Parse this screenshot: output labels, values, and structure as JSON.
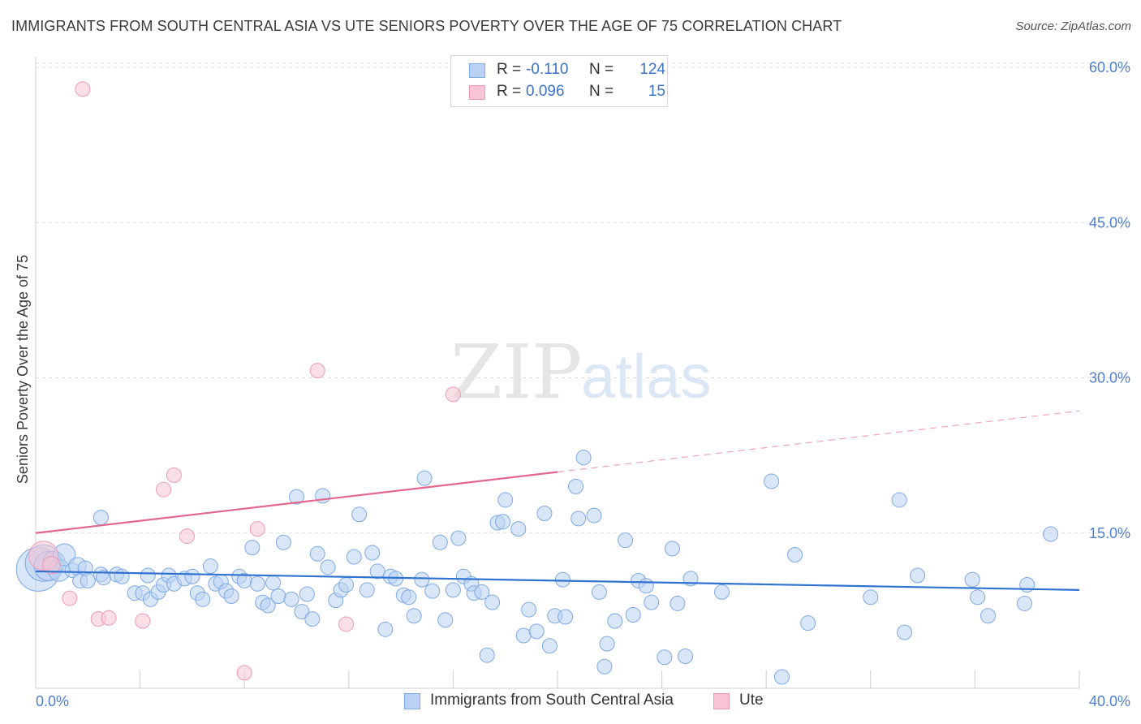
{
  "header": {
    "title": "IMMIGRANTS FROM SOUTH CENTRAL ASIA VS UTE SENIORS POVERTY OVER THE AGE OF 75 CORRELATION CHART",
    "source": "Source: ZipAtlas.com"
  },
  "watermark": {
    "zip": "ZIP",
    "atlas": "atlas"
  },
  "legend": {
    "rows": [
      {
        "r_label": "R =",
        "r_value": "-0.110",
        "n_label": "N =",
        "n_value": "124",
        "color": "#7fa9e6",
        "fill": "#b9d2f3"
      },
      {
        "r_label": "R =",
        "r_value": "0.096",
        "n_label": "N =",
        "n_value": "15",
        "color": "#ee9ab4",
        "fill": "#f7c5d4"
      }
    ]
  },
  "bottom_legend": [
    {
      "label": "Immigrants from South Central Asia",
      "color": "#7fa9e6",
      "fill": "#b9d2f3"
    },
    {
      "label": "Ute",
      "color": "#ee9ab4",
      "fill": "#f7c5d4"
    }
  ],
  "chart_data": {
    "type": "scatter",
    "title": "IMMIGRANTS FROM SOUTH CENTRAL ASIA VS UTE SENIORS POVERTY OVER THE AGE OF 75 CORRELATION CHART",
    "xlabel": "",
    "ylabel": "Seniors Poverty Over the Age of 75",
    "xlim": [
      0,
      40
    ],
    "ylim": [
      0,
      62
    ],
    "x_tick_labels": {
      "min": "0.0%",
      "max": "40.0%"
    },
    "y_ticks": [
      15,
      30,
      45,
      60
    ],
    "y_tick_labels": [
      "15.0%",
      "30.0%",
      "45.0%",
      "60.0%"
    ],
    "grid": "horizontal dashed",
    "legend_position": "top-center",
    "series": [
      {
        "name": "Immigrants from South Central Asia",
        "color": "#7fa9e6",
        "fill": "#b9d2f3",
        "trend": {
          "x0": 0,
          "y0": 11.3,
          "x1": 40,
          "y1": 9.5,
          "color": "#2f72d0"
        },
        "points": [
          [
            0.1,
            11.5,
            3
          ],
          [
            0.3,
            12.1,
            2.5
          ],
          [
            0.5,
            11.8,
            2
          ],
          [
            0.7,
            12.2,
            1.5
          ],
          [
            0.9,
            11.4,
            1.5
          ],
          [
            1.1,
            12.9,
            1.5
          ],
          [
            1.4,
            11.4,
            1
          ],
          [
            1.6,
            11.8,
            1.2
          ],
          [
            1.7,
            10.4,
            1
          ],
          [
            2.5,
            16.5,
            1
          ],
          [
            1.9,
            11.6,
            1
          ],
          [
            2.0,
            10.4,
            1
          ],
          [
            2.5,
            11.0,
            1
          ],
          [
            2.6,
            10.7,
            1
          ],
          [
            3.1,
            11.0,
            1
          ],
          [
            3.3,
            10.8,
            1
          ],
          [
            3.8,
            9.2,
            1
          ],
          [
            4.1,
            9.2,
            1
          ],
          [
            4.3,
            10.9,
            1
          ],
          [
            4.4,
            8.6,
            1
          ],
          [
            4.7,
            9.3,
            1
          ],
          [
            4.9,
            10.0,
            1
          ],
          [
            5.1,
            10.9,
            1
          ],
          [
            5.3,
            10.1,
            1
          ],
          [
            5.7,
            10.6,
            1
          ],
          [
            6.0,
            10.8,
            1
          ],
          [
            6.2,
            9.2,
            1
          ],
          [
            6.4,
            8.6,
            1
          ],
          [
            6.7,
            11.8,
            1
          ],
          [
            6.9,
            10.1,
            1
          ],
          [
            7.1,
            10.3,
            1
          ],
          [
            7.3,
            9.4,
            1
          ],
          [
            7.5,
            8.9,
            1
          ],
          [
            7.8,
            10.8,
            1
          ],
          [
            8.0,
            10.4,
            1
          ],
          [
            8.3,
            13.6,
            1
          ],
          [
            8.5,
            10.1,
            1
          ],
          [
            8.7,
            8.3,
            1
          ],
          [
            8.9,
            8.0,
            1
          ],
          [
            9.1,
            10.2,
            1
          ],
          [
            9.3,
            8.9,
            1
          ],
          [
            9.5,
            14.1,
            1
          ],
          [
            9.8,
            8.6,
            1
          ],
          [
            10.0,
            18.5,
            1
          ],
          [
            10.2,
            7.4,
            1
          ],
          [
            10.4,
            9.1,
            1
          ],
          [
            10.6,
            6.7,
            1
          ],
          [
            10.8,
            13.0,
            1
          ],
          [
            11.0,
            18.6,
            1
          ],
          [
            11.2,
            11.7,
            1
          ],
          [
            11.5,
            8.5,
            1
          ],
          [
            11.7,
            9.5,
            1
          ],
          [
            11.9,
            10.0,
            1
          ],
          [
            12.2,
            12.7,
            1
          ],
          [
            12.4,
            16.8,
            1
          ],
          [
            12.7,
            9.5,
            1
          ],
          [
            12.9,
            13.1,
            1
          ],
          [
            13.1,
            11.3,
            1
          ],
          [
            13.4,
            5.7,
            1
          ],
          [
            13.6,
            10.8,
            1
          ],
          [
            13.8,
            10.6,
            1
          ],
          [
            14.1,
            9.0,
            1
          ],
          [
            14.3,
            8.8,
            1
          ],
          [
            14.5,
            7.0,
            1
          ],
          [
            14.8,
            10.5,
            1
          ],
          [
            14.9,
            20.3,
            1
          ],
          [
            15.2,
            9.4,
            1
          ],
          [
            15.5,
            14.1,
            1
          ],
          [
            15.7,
            6.6,
            1
          ],
          [
            16.0,
            9.5,
            1
          ],
          [
            16.2,
            14.5,
            1
          ],
          [
            16.4,
            10.8,
            1
          ],
          [
            16.7,
            10.1,
            1
          ],
          [
            16.8,
            9.2,
            1
          ],
          [
            17.1,
            9.3,
            1
          ],
          [
            17.3,
            3.2,
            1
          ],
          [
            17.5,
            8.3,
            1
          ],
          [
            17.7,
            16.0,
            1
          ],
          [
            17.9,
            16.1,
            1
          ],
          [
            18.0,
            18.2,
            1
          ],
          [
            18.5,
            15.4,
            1
          ],
          [
            18.7,
            5.1,
            1
          ],
          [
            18.9,
            7.6,
            1
          ],
          [
            19.2,
            5.5,
            1
          ],
          [
            19.5,
            16.9,
            1
          ],
          [
            19.7,
            4.1,
            1
          ],
          [
            19.9,
            7.0,
            1
          ],
          [
            20.2,
            10.5,
            1
          ],
          [
            20.3,
            6.9,
            1
          ],
          [
            20.7,
            19.5,
            1
          ],
          [
            20.8,
            16.4,
            1
          ],
          [
            21.0,
            22.3,
            1
          ],
          [
            21.4,
            16.7,
            1
          ],
          [
            21.6,
            9.3,
            1
          ],
          [
            21.8,
            2.1,
            1
          ],
          [
            21.9,
            4.3,
            1
          ],
          [
            22.2,
            6.5,
            1
          ],
          [
            22.6,
            14.3,
            1
          ],
          [
            22.9,
            7.1,
            1
          ],
          [
            23.1,
            10.4,
            1
          ],
          [
            23.4,
            9.9,
            1
          ],
          [
            23.6,
            8.3,
            1
          ],
          [
            24.1,
            3.0,
            1
          ],
          [
            24.4,
            13.5,
            1
          ],
          [
            24.6,
            8.2,
            1
          ],
          [
            24.9,
            3.1,
            1
          ],
          [
            25.1,
            10.6,
            1
          ],
          [
            26.3,
            9.3,
            1
          ],
          [
            28.2,
            20.0,
            1
          ],
          [
            28.6,
            1.1,
            1
          ],
          [
            29.1,
            12.9,
            1
          ],
          [
            29.6,
            6.3,
            1
          ],
          [
            32.0,
            8.8,
            1
          ],
          [
            33.1,
            18.2,
            1
          ],
          [
            33.3,
            5.4,
            1
          ],
          [
            33.8,
            10.9,
            1
          ],
          [
            35.9,
            10.5,
            1
          ],
          [
            36.1,
            8.8,
            1
          ],
          [
            36.5,
            7.0,
            1
          ],
          [
            37.9,
            8.2,
            1
          ],
          [
            38.0,
            10.0,
            1
          ],
          [
            38.9,
            14.9,
            1
          ]
        ]
      },
      {
        "name": "Ute",
        "color": "#ee9ab4",
        "fill": "#f7c5d4",
        "trend": {
          "x0": 0,
          "y0": 15.0,
          "x1": 20,
          "y1": 20.9,
          "dash_to_x": 40,
          "dash_to_y": 26.8,
          "color": "#e3668f"
        },
        "points": [
          [
            0.3,
            12.8,
            2
          ],
          [
            0.6,
            11.9,
            1.2
          ],
          [
            1.8,
            57.9,
            1
          ],
          [
            1.3,
            8.7,
            1
          ],
          [
            2.4,
            6.7,
            1
          ],
          [
            2.8,
            6.8,
            1
          ],
          [
            4.1,
            6.5,
            1
          ],
          [
            4.9,
            19.2,
            1
          ],
          [
            5.3,
            20.6,
            1
          ],
          [
            5.8,
            14.7,
            1
          ],
          [
            8.0,
            1.5,
            1
          ],
          [
            8.5,
            15.4,
            1
          ],
          [
            10.8,
            30.7,
            1
          ],
          [
            11.9,
            6.2,
            1
          ],
          [
            16.0,
            28.4,
            1
          ]
        ]
      }
    ]
  }
}
